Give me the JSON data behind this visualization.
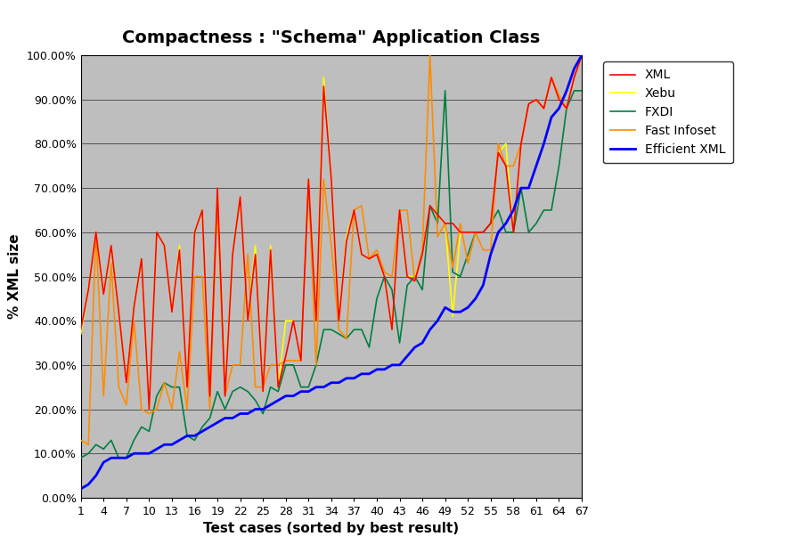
{
  "title": "Compactness : \"Schema\" Application Class",
  "xlabel": "Test cases (sorted by best result)",
  "ylabel": "% XML size",
  "xlim": [
    1,
    67
  ],
  "ylim": [
    0.0,
    1.0
  ],
  "ytick_vals": [
    0.0,
    0.1,
    0.2,
    0.3,
    0.4,
    0.5,
    0.6,
    0.7,
    0.8,
    0.9,
    1.0
  ],
  "ytick_labels": [
    "0.00%",
    "10.00%",
    "20.00%",
    "30.00%",
    "40.00%",
    "50.00%",
    "60.00%",
    "70.00%",
    "80.00%",
    "90.00%",
    "100.00%"
  ],
  "xticks": [
    1,
    4,
    7,
    10,
    13,
    16,
    19,
    22,
    25,
    28,
    31,
    34,
    37,
    40,
    43,
    46,
    49,
    52,
    55,
    58,
    61,
    64,
    67
  ],
  "background_color": "#bebebe",
  "fig_facecolor": "#ffffff",
  "series": {
    "XML": {
      "color": "#ff0000",
      "linewidth": 1.2,
      "zorder": 4,
      "data": [
        [
          1,
          0.38
        ],
        [
          2,
          0.47
        ],
        [
          3,
          0.6
        ],
        [
          4,
          0.46
        ],
        [
          5,
          0.57
        ],
        [
          6,
          0.42
        ],
        [
          7,
          0.26
        ],
        [
          8,
          0.43
        ],
        [
          9,
          0.54
        ],
        [
          10,
          0.2
        ],
        [
          11,
          0.6
        ],
        [
          12,
          0.57
        ],
        [
          13,
          0.42
        ],
        [
          14,
          0.56
        ],
        [
          15,
          0.25
        ],
        [
          16,
          0.6
        ],
        [
          17,
          0.65
        ],
        [
          18,
          0.23
        ],
        [
          19,
          0.7
        ],
        [
          20,
          0.23
        ],
        [
          21,
          0.55
        ],
        [
          22,
          0.68
        ],
        [
          23,
          0.4
        ],
        [
          24,
          0.55
        ],
        [
          25,
          0.24
        ],
        [
          26,
          0.56
        ],
        [
          27,
          0.25
        ],
        [
          28,
          0.32
        ],
        [
          29,
          0.4
        ],
        [
          30,
          0.31
        ],
        [
          31,
          0.72
        ],
        [
          32,
          0.4
        ],
        [
          33,
          0.93
        ],
        [
          34,
          0.72
        ],
        [
          35,
          0.4
        ],
        [
          36,
          0.58
        ],
        [
          37,
          0.65
        ],
        [
          38,
          0.55
        ],
        [
          39,
          0.54
        ],
        [
          40,
          0.55
        ],
        [
          41,
          0.5
        ],
        [
          42,
          0.38
        ],
        [
          43,
          0.65
        ],
        [
          44,
          0.5
        ],
        [
          45,
          0.49
        ],
        [
          46,
          0.55
        ],
        [
          47,
          0.66
        ],
        [
          48,
          0.64
        ],
        [
          49,
          0.62
        ],
        [
          50,
          0.62
        ],
        [
          51,
          0.6
        ],
        [
          52,
          0.6
        ],
        [
          53,
          0.6
        ],
        [
          54,
          0.6
        ],
        [
          55,
          0.62
        ],
        [
          56,
          0.78
        ],
        [
          57,
          0.75
        ],
        [
          58,
          0.6
        ],
        [
          59,
          0.8
        ],
        [
          60,
          0.89
        ],
        [
          61,
          0.9
        ],
        [
          62,
          0.88
        ],
        [
          63,
          0.95
        ],
        [
          64,
          0.9
        ],
        [
          65,
          0.88
        ],
        [
          66,
          0.95
        ],
        [
          67,
          1.0
        ]
      ]
    },
    "Xebu": {
      "color": "#ffff00",
      "linewidth": 1.2,
      "zorder": 3,
      "data": [
        [
          1,
          0.37
        ],
        [
          2,
          0.47
        ],
        [
          3,
          0.6
        ],
        [
          4,
          0.46
        ],
        [
          5,
          0.57
        ],
        [
          6,
          0.42
        ],
        [
          7,
          0.26
        ],
        [
          8,
          0.43
        ],
        [
          9,
          0.54
        ],
        [
          10,
          0.2
        ],
        [
          11,
          0.6
        ],
        [
          12,
          0.57
        ],
        [
          13,
          0.42
        ],
        [
          14,
          0.57
        ],
        [
          15,
          0.25
        ],
        [
          16,
          0.6
        ],
        [
          17,
          0.65
        ],
        [
          18,
          0.23
        ],
        [
          19,
          0.7
        ],
        [
          20,
          0.24
        ],
        [
          21,
          0.55
        ],
        [
          22,
          0.68
        ],
        [
          23,
          0.4
        ],
        [
          24,
          0.57
        ],
        [
          25,
          0.24
        ],
        [
          26,
          0.57
        ],
        [
          27,
          0.25
        ],
        [
          28,
          0.4
        ],
        [
          29,
          0.4
        ],
        [
          30,
          0.31
        ],
        [
          31,
          0.72
        ],
        [
          32,
          0.4
        ],
        [
          33,
          0.95
        ],
        [
          34,
          0.72
        ],
        [
          35,
          0.4
        ],
        [
          36,
          0.59
        ],
        [
          37,
          0.65
        ],
        [
          38,
          0.55
        ],
        [
          39,
          0.54
        ],
        [
          40,
          0.55
        ],
        [
          41,
          0.5
        ],
        [
          42,
          0.38
        ],
        [
          43,
          0.65
        ],
        [
          44,
          0.5
        ],
        [
          45,
          0.5
        ],
        [
          46,
          0.55
        ],
        [
          47,
          0.66
        ],
        [
          48,
          0.64
        ],
        [
          49,
          0.62
        ],
        [
          50,
          0.41
        ],
        [
          51,
          0.6
        ],
        [
          52,
          0.6
        ],
        [
          53,
          0.6
        ],
        [
          54,
          0.6
        ],
        [
          55,
          0.62
        ],
        [
          56,
          0.78
        ],
        [
          57,
          0.8
        ],
        [
          58,
          0.6
        ],
        [
          59,
          0.8
        ],
        [
          60,
          0.89
        ],
        [
          61,
          0.9
        ],
        [
          62,
          0.88
        ],
        [
          63,
          0.95
        ],
        [
          64,
          0.9
        ],
        [
          65,
          0.88
        ],
        [
          66,
          0.95
        ],
        [
          67,
          1.0
        ]
      ]
    },
    "FXDI": {
      "color": "#008040",
      "linewidth": 1.2,
      "zorder": 3,
      "data": [
        [
          1,
          0.09
        ],
        [
          2,
          0.1
        ],
        [
          3,
          0.12
        ],
        [
          4,
          0.11
        ],
        [
          5,
          0.13
        ],
        [
          6,
          0.09
        ],
        [
          7,
          0.09
        ],
        [
          8,
          0.13
        ],
        [
          9,
          0.16
        ],
        [
          10,
          0.15
        ],
        [
          11,
          0.23
        ],
        [
          12,
          0.26
        ],
        [
          13,
          0.25
        ],
        [
          14,
          0.25
        ],
        [
          15,
          0.14
        ],
        [
          16,
          0.13
        ],
        [
          17,
          0.16
        ],
        [
          18,
          0.18
        ],
        [
          19,
          0.24
        ],
        [
          20,
          0.2
        ],
        [
          21,
          0.24
        ],
        [
          22,
          0.25
        ],
        [
          23,
          0.24
        ],
        [
          24,
          0.22
        ],
        [
          25,
          0.19
        ],
        [
          26,
          0.25
        ],
        [
          27,
          0.24
        ],
        [
          28,
          0.3
        ],
        [
          29,
          0.3
        ],
        [
          30,
          0.25
        ],
        [
          31,
          0.25
        ],
        [
          32,
          0.3
        ],
        [
          33,
          0.38
        ],
        [
          34,
          0.38
        ],
        [
          35,
          0.37
        ],
        [
          36,
          0.36
        ],
        [
          37,
          0.38
        ],
        [
          38,
          0.38
        ],
        [
          39,
          0.34
        ],
        [
          40,
          0.45
        ],
        [
          41,
          0.5
        ],
        [
          42,
          0.47
        ],
        [
          43,
          0.35
        ],
        [
          44,
          0.48
        ],
        [
          45,
          0.5
        ],
        [
          46,
          0.47
        ],
        [
          47,
          0.66
        ],
        [
          48,
          0.62
        ],
        [
          49,
          0.92
        ],
        [
          50,
          0.51
        ],
        [
          51,
          0.5
        ],
        [
          52,
          0.55
        ],
        [
          53,
          0.6
        ],
        [
          54,
          0.6
        ],
        [
          55,
          0.62
        ],
        [
          56,
          0.65
        ],
        [
          57,
          0.6
        ],
        [
          58,
          0.6
        ],
        [
          59,
          0.7
        ],
        [
          60,
          0.6
        ],
        [
          61,
          0.62
        ],
        [
          62,
          0.65
        ],
        [
          63,
          0.65
        ],
        [
          64,
          0.75
        ],
        [
          65,
          0.88
        ],
        [
          66,
          0.92
        ],
        [
          67,
          0.92
        ]
      ]
    },
    "Fast Infoset": {
      "color": "#ff8c00",
      "linewidth": 1.2,
      "zorder": 3,
      "data": [
        [
          1,
          0.13
        ],
        [
          2,
          0.12
        ],
        [
          3,
          0.6
        ],
        [
          4,
          0.23
        ],
        [
          5,
          0.53
        ],
        [
          6,
          0.25
        ],
        [
          7,
          0.21
        ],
        [
          8,
          0.4
        ],
        [
          9,
          0.2
        ],
        [
          10,
          0.19
        ],
        [
          11,
          0.2
        ],
        [
          12,
          0.26
        ],
        [
          13,
          0.2
        ],
        [
          14,
          0.33
        ],
        [
          15,
          0.2
        ],
        [
          16,
          0.5
        ],
        [
          17,
          0.5
        ],
        [
          18,
          0.2
        ],
        [
          19,
          0.67
        ],
        [
          20,
          0.23
        ],
        [
          21,
          0.3
        ],
        [
          22,
          0.3
        ],
        [
          23,
          0.55
        ],
        [
          24,
          0.25
        ],
        [
          25,
          0.25
        ],
        [
          26,
          0.3
        ],
        [
          27,
          0.3
        ],
        [
          28,
          0.31
        ],
        [
          29,
          0.31
        ],
        [
          30,
          0.31
        ],
        [
          31,
          0.71
        ],
        [
          32,
          0.3
        ],
        [
          33,
          0.72
        ],
        [
          34,
          0.57
        ],
        [
          35,
          0.38
        ],
        [
          36,
          0.36
        ],
        [
          37,
          0.65
        ],
        [
          38,
          0.66
        ],
        [
          39,
          0.54
        ],
        [
          40,
          0.56
        ],
        [
          41,
          0.51
        ],
        [
          42,
          0.5
        ],
        [
          43,
          0.65
        ],
        [
          44,
          0.65
        ],
        [
          45,
          0.49
        ],
        [
          46,
          0.56
        ],
        [
          47,
          1.0
        ],
        [
          48,
          0.59
        ],
        [
          49,
          0.62
        ],
        [
          50,
          0.52
        ],
        [
          51,
          0.62
        ],
        [
          52,
          0.53
        ],
        [
          53,
          0.6
        ],
        [
          54,
          0.56
        ],
        [
          55,
          0.56
        ],
        [
          56,
          0.8
        ],
        [
          57,
          0.75
        ],
        [
          58,
          0.75
        ],
        [
          59,
          0.8
        ],
        [
          60,
          0.89
        ],
        [
          61,
          0.9
        ],
        [
          62,
          0.88
        ],
        [
          63,
          0.95
        ],
        [
          64,
          0.91
        ],
        [
          65,
          0.88
        ],
        [
          66,
          0.95
        ],
        [
          67,
          1.0
        ]
      ]
    },
    "Efficient XML": {
      "color": "#0000ff",
      "linewidth": 2.0,
      "zorder": 5,
      "data": [
        [
          1,
          0.02
        ],
        [
          2,
          0.03
        ],
        [
          3,
          0.05
        ],
        [
          4,
          0.08
        ],
        [
          5,
          0.09
        ],
        [
          6,
          0.09
        ],
        [
          7,
          0.09
        ],
        [
          8,
          0.1
        ],
        [
          9,
          0.1
        ],
        [
          10,
          0.1
        ],
        [
          11,
          0.11
        ],
        [
          12,
          0.12
        ],
        [
          13,
          0.12
        ],
        [
          14,
          0.13
        ],
        [
          15,
          0.14
        ],
        [
          16,
          0.14
        ],
        [
          17,
          0.15
        ],
        [
          18,
          0.16
        ],
        [
          19,
          0.17
        ],
        [
          20,
          0.18
        ],
        [
          21,
          0.18
        ],
        [
          22,
          0.19
        ],
        [
          23,
          0.19
        ],
        [
          24,
          0.2
        ],
        [
          25,
          0.2
        ],
        [
          26,
          0.21
        ],
        [
          27,
          0.22
        ],
        [
          28,
          0.23
        ],
        [
          29,
          0.23
        ],
        [
          30,
          0.24
        ],
        [
          31,
          0.24
        ],
        [
          32,
          0.25
        ],
        [
          33,
          0.25
        ],
        [
          34,
          0.26
        ],
        [
          35,
          0.26
        ],
        [
          36,
          0.27
        ],
        [
          37,
          0.27
        ],
        [
          38,
          0.28
        ],
        [
          39,
          0.28
        ],
        [
          40,
          0.29
        ],
        [
          41,
          0.29
        ],
        [
          42,
          0.3
        ],
        [
          43,
          0.3
        ],
        [
          44,
          0.32
        ],
        [
          45,
          0.34
        ],
        [
          46,
          0.35
        ],
        [
          47,
          0.38
        ],
        [
          48,
          0.4
        ],
        [
          49,
          0.43
        ],
        [
          50,
          0.42
        ],
        [
          51,
          0.42
        ],
        [
          52,
          0.43
        ],
        [
          53,
          0.45
        ],
        [
          54,
          0.48
        ],
        [
          55,
          0.55
        ],
        [
          56,
          0.6
        ],
        [
          57,
          0.62
        ],
        [
          58,
          0.65
        ],
        [
          59,
          0.7
        ],
        [
          60,
          0.7
        ],
        [
          61,
          0.75
        ],
        [
          62,
          0.8
        ],
        [
          63,
          0.86
        ],
        [
          64,
          0.88
        ],
        [
          65,
          0.92
        ],
        [
          66,
          0.97
        ],
        [
          67,
          1.0
        ]
      ]
    }
  },
  "legend_order": [
    "XML",
    "Xebu",
    "FXDI",
    "Fast Infoset",
    "Efficient XML"
  ],
  "title_fontsize": 14,
  "axis_label_fontsize": 11,
  "tick_fontsize": 9,
  "legend_fontsize": 10
}
